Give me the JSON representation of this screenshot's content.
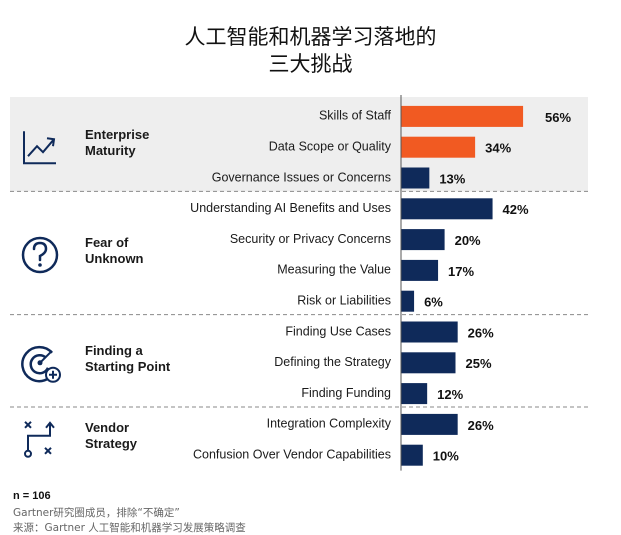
{
  "title_lines": [
    "人工智能和机器学习落地的",
    "三大挑战"
  ],
  "colors": {
    "highlight": "#f15a22",
    "bar": "#0f2a5a",
    "band": "#eeeeee",
    "icon": "#0f2a5a",
    "divider": "#8a8a8a"
  },
  "chart_data": {
    "type": "bar",
    "orientation": "horizontal",
    "value_unit": "%",
    "xlim": [
      0,
      100
    ],
    "groups": [
      {
        "name_lines": [
          "Enterprise",
          "Maturity"
        ],
        "icon": "trending-chart-icon",
        "banded": true,
        "items": [
          {
            "label": "Skills of Staff",
            "value": 56,
            "highlight": true
          },
          {
            "label": "Data Scope or Quality",
            "value": 34,
            "highlight": true
          },
          {
            "label": "Governance Issues or Concerns",
            "value": 13,
            "highlight": false
          }
        ]
      },
      {
        "name_lines": [
          "Fear of",
          "Unknown"
        ],
        "icon": "question-icon",
        "banded": false,
        "items": [
          {
            "label": "Understanding AI Benefits and Uses",
            "value": 42,
            "highlight": false
          },
          {
            "label": "Security or Privacy Concerns",
            "value": 20,
            "highlight": false
          },
          {
            "label": "Measuring the Value",
            "value": 17,
            "highlight": false
          },
          {
            "label": "Risk or Liabilities",
            "value": 6,
            "highlight": false
          }
        ]
      },
      {
        "name_lines": [
          "Finding a",
          "Starting Point"
        ],
        "icon": "target-add-icon",
        "banded": false,
        "items": [
          {
            "label": "Finding Use Cases",
            "value": 26,
            "highlight": false
          },
          {
            "label": "Defining the Strategy",
            "value": 25,
            "highlight": false
          },
          {
            "label": "Finding Funding",
            "value": 12,
            "highlight": false
          }
        ]
      },
      {
        "name_lines": [
          "Vendor",
          "Strategy"
        ],
        "icon": "strategy-play-icon",
        "banded": false,
        "items": [
          {
            "label": "Integration Complexity",
            "value": 26,
            "highlight": false
          },
          {
            "label": "Confusion Over Vendor Capabilities",
            "value": 10,
            "highlight": false
          }
        ]
      }
    ]
  },
  "footer": {
    "n": "n = 106",
    "note": "Gartner研究圈成员，排除“不确定”",
    "source": "来源：Gartner 人工智能和机器学习发展策略调查"
  }
}
